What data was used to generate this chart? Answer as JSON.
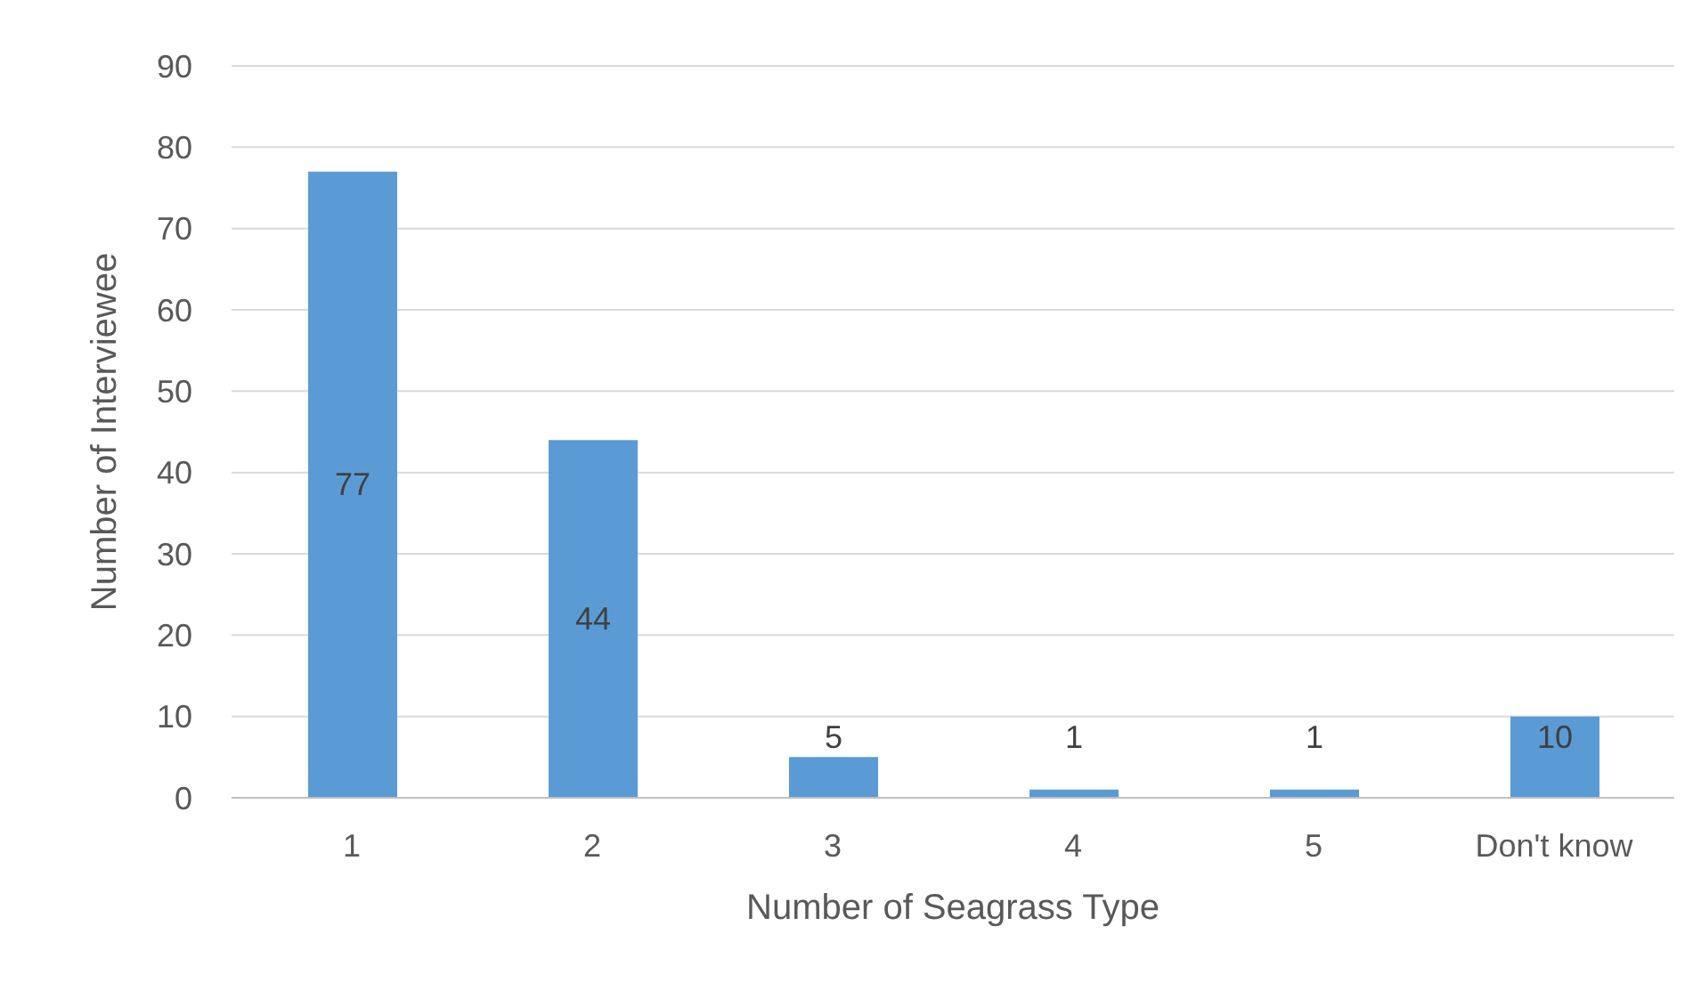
{
  "chart_data": {
    "type": "bar",
    "xlabel": "Number of Seagrass Type",
    "ylabel": "Number of Interviewee",
    "categories": [
      "1",
      "2",
      "3",
      "4",
      "5",
      "Don't know"
    ],
    "values": [
      77,
      44,
      5,
      1,
      1,
      10
    ],
    "color": "#5b9bd5",
    "ylim": [
      0,
      90
    ],
    "yticks": [
      0,
      10,
      20,
      30,
      40,
      50,
      60,
      70,
      80,
      90
    ],
    "grid": "y",
    "data_labels": true
  }
}
